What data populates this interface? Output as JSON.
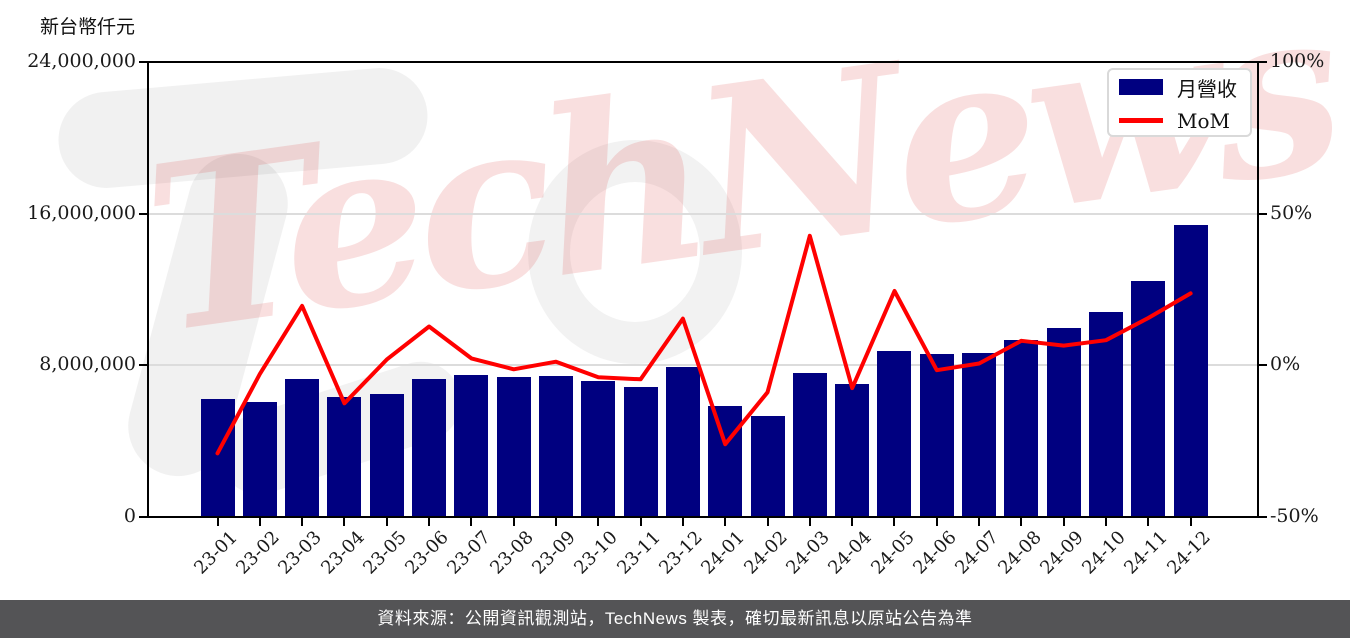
{
  "unit_label": "新台幣仟元",
  "watermark": {
    "text": "TechNews"
  },
  "legend": {
    "bar_label": "月營收",
    "line_label": "MoM"
  },
  "footer": {
    "text": "資料來源：公開資訊觀測站，TechNews 製表，確切最新訊息以原站公告為準"
  },
  "colors": {
    "bar": "#000080",
    "line": "#ff0000",
    "grid": "#dcdcdc",
    "spine": "#000000",
    "footer_bg": "#545456",
    "footer_text": "#ffffff",
    "watermark": "rgba(219,58,58,0.16)"
  },
  "chart_data": {
    "type": "bar",
    "subtype": "monthly revenue bars with MoM percentage line, dual y-axes",
    "title": "",
    "xlabel": "",
    "ylabel_left": "新台幣仟元",
    "ylabel_right": "%",
    "grid": {
      "horizontal_at": [
        8000000,
        16000000
      ]
    },
    "legend_position": "upper right",
    "categories": [
      "23-01",
      "23-02",
      "23-03",
      "23-04",
      "23-05",
      "23-06",
      "23-07",
      "23-08",
      "23-09",
      "23-10",
      "23-11",
      "23-12",
      "24-01",
      "24-02",
      "24-03",
      "24-04",
      "24-05",
      "24-06",
      "24-07",
      "24-08",
      "24-09",
      "24-10",
      "24-11",
      "24-12"
    ],
    "series": [
      {
        "name": "月營收",
        "type": "bar",
        "axis": "left",
        "unit": "新台幣仟元",
        "values": [
          6250000,
          6070000,
          7260000,
          6350000,
          6470000,
          7300000,
          7470000,
          7370000,
          7460000,
          7170000,
          6840000,
          7890000,
          5840000,
          5320000,
          7590000,
          7020000,
          8740000,
          8600000,
          8650000,
          9350000,
          9960000,
          10790000,
          12470000,
          15420000
        ]
      },
      {
        "name": "MoM",
        "type": "line",
        "axis": "right",
        "unit": "%",
        "values": [
          -29.0,
          -2.9,
          19.6,
          -12.5,
          1.9,
          12.8,
          2.3,
          -1.3,
          1.2,
          -3.9,
          -4.6,
          15.4,
          -26.0,
          -8.9,
          42.7,
          -7.5,
          24.5,
          -1.6,
          0.6,
          8.1,
          6.5,
          8.3,
          15.6,
          23.7
        ]
      }
    ],
    "left_axis": {
      "range": [
        0,
        24000000
      ],
      "ticks": [
        0,
        8000000,
        16000000,
        24000000
      ],
      "tick_labels": [
        "0",
        "8,000,000",
        "16,000,000",
        "24,000,000"
      ]
    },
    "right_axis": {
      "range": [
        -50,
        100
      ],
      "ticks": [
        -50,
        0,
        50,
        100
      ],
      "tick_labels": [
        "-50%",
        "0%",
        "50%",
        "100%"
      ]
    }
  }
}
